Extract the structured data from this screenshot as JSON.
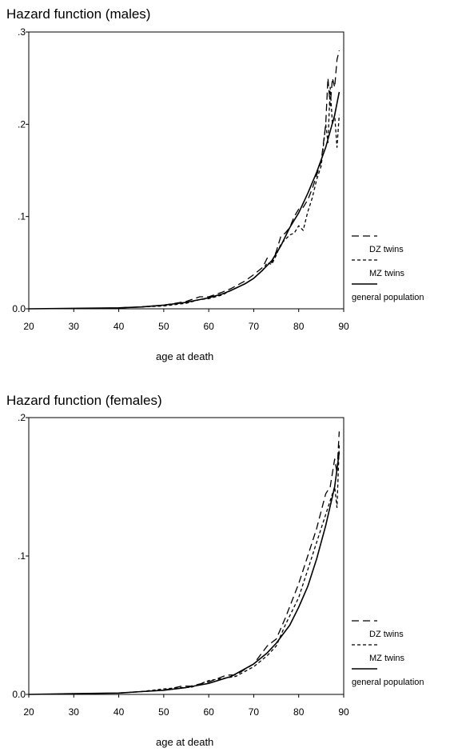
{
  "chart_data": [
    {
      "type": "line",
      "title": "Hazard function (males)",
      "xlabel": "age at death",
      "ylabel": "",
      "xlim": [
        20,
        90
      ],
      "ylim": [
        0,
        0.3
      ],
      "x_ticks": [
        "20",
        "30",
        "40",
        "50",
        "60",
        "70",
        "80",
        "90"
      ],
      "y_ticks": [
        "0.0",
        ".1",
        ".2",
        ".3"
      ],
      "grid": false,
      "legend": {
        "placement": "right",
        "labels": [
          "DZ twins",
          "MZ twins",
          "general population"
        ]
      },
      "series": [
        {
          "name": "DZ twins",
          "style": "long-dash",
          "x": [
            40,
            45,
            50,
            55,
            58,
            60,
            63,
            65,
            68,
            70,
            72,
            73,
            74,
            75,
            76,
            77,
            78,
            79,
            80,
            81,
            82,
            83,
            84,
            85,
            86,
            86.5,
            87,
            87.5,
            88,
            88.5,
            89
          ],
          "values": [
            0.001,
            0.002,
            0.004,
            0.008,
            0.013,
            0.013,
            0.018,
            0.022,
            0.03,
            0.037,
            0.045,
            0.055,
            0.05,
            0.062,
            0.078,
            0.082,
            0.088,
            0.1,
            0.108,
            0.11,
            0.118,
            0.13,
            0.145,
            0.16,
            0.2,
            0.25,
            0.22,
            0.25,
            0.24,
            0.27,
            0.28
          ]
        },
        {
          "name": "MZ twins",
          "style": "short-dash",
          "x": [
            40,
            45,
            50,
            55,
            58,
            60,
            63,
            65,
            68,
            70,
            72,
            73,
            74,
            75,
            76,
            77,
            78,
            79,
            80,
            81,
            82,
            83,
            84,
            85,
            86,
            86.5,
            87,
            87.5,
            88,
            88.5,
            89
          ],
          "values": [
            0.001,
            0.002,
            0.003,
            0.006,
            0.01,
            0.011,
            0.015,
            0.02,
            0.027,
            0.033,
            0.042,
            0.05,
            0.048,
            0.058,
            0.07,
            0.075,
            0.08,
            0.082,
            0.09,
            0.085,
            0.105,
            0.12,
            0.14,
            0.155,
            0.2,
            0.18,
            0.24,
            0.2,
            0.21,
            0.175,
            0.21
          ]
        },
        {
          "name": "general population",
          "style": "solid",
          "x": [
            20,
            30,
            40,
            45,
            50,
            55,
            60,
            63,
            65,
            68,
            70,
            72,
            74,
            75,
            76,
            78,
            80,
            82,
            84,
            86,
            88,
            89
          ],
          "values": [
            0.0,
            0.0005,
            0.001,
            0.002,
            0.004,
            0.007,
            0.012,
            0.016,
            0.02,
            0.027,
            0.033,
            0.042,
            0.052,
            0.06,
            0.068,
            0.088,
            0.104,
            0.125,
            0.148,
            0.175,
            0.21,
            0.235
          ]
        }
      ]
    },
    {
      "type": "line",
      "title": "Hazard function (females)",
      "xlabel": "age at death",
      "ylabel": "",
      "xlim": [
        20,
        90
      ],
      "ylim": [
        0,
        0.2
      ],
      "x_ticks": [
        "20",
        "30",
        "40",
        "50",
        "60",
        "70",
        "80",
        "90"
      ],
      "y_ticks": [
        "0.0",
        ".1",
        ".2"
      ],
      "grid": false,
      "legend": {
        "placement": "right",
        "labels": [
          "DZ twins",
          "MZ twins",
          "general population"
        ]
      },
      "series": [
        {
          "name": "DZ twins",
          "style": "long-dash",
          "x": [
            40,
            45,
            50,
            54,
            56,
            60,
            64,
            66,
            70,
            73,
            75,
            77,
            80,
            82,
            84,
            86,
            87,
            88,
            88.5,
            89
          ],
          "values": [
            0.001,
            0.002,
            0.003,
            0.006,
            0.006,
            0.009,
            0.014,
            0.014,
            0.022,
            0.035,
            0.04,
            0.055,
            0.08,
            0.1,
            0.12,
            0.145,
            0.15,
            0.17,
            0.16,
            0.19
          ]
        },
        {
          "name": "MZ twins",
          "style": "short-dash",
          "x": [
            40,
            45,
            50,
            54,
            56,
            60,
            64,
            66,
            70,
            73,
            75,
            77,
            80,
            82,
            84,
            86,
            87,
            88,
            88.5,
            89
          ],
          "values": [
            0.001,
            0.002,
            0.004,
            0.005,
            0.005,
            0.01,
            0.012,
            0.013,
            0.02,
            0.028,
            0.035,
            0.05,
            0.07,
            0.09,
            0.11,
            0.13,
            0.14,
            0.15,
            0.135,
            0.18
          ]
        },
        {
          "name": "general population",
          "style": "solid",
          "x": [
            20,
            30,
            40,
            45,
            50,
            55,
            60,
            65,
            70,
            73,
            75,
            78,
            80,
            82,
            84,
            86,
            88,
            89
          ],
          "values": [
            0.0,
            0.0005,
            0.001,
            0.002,
            0.003,
            0.005,
            0.008,
            0.013,
            0.022,
            0.03,
            0.037,
            0.05,
            0.063,
            0.078,
            0.098,
            0.122,
            0.15,
            0.175
          ]
        }
      ]
    }
  ]
}
